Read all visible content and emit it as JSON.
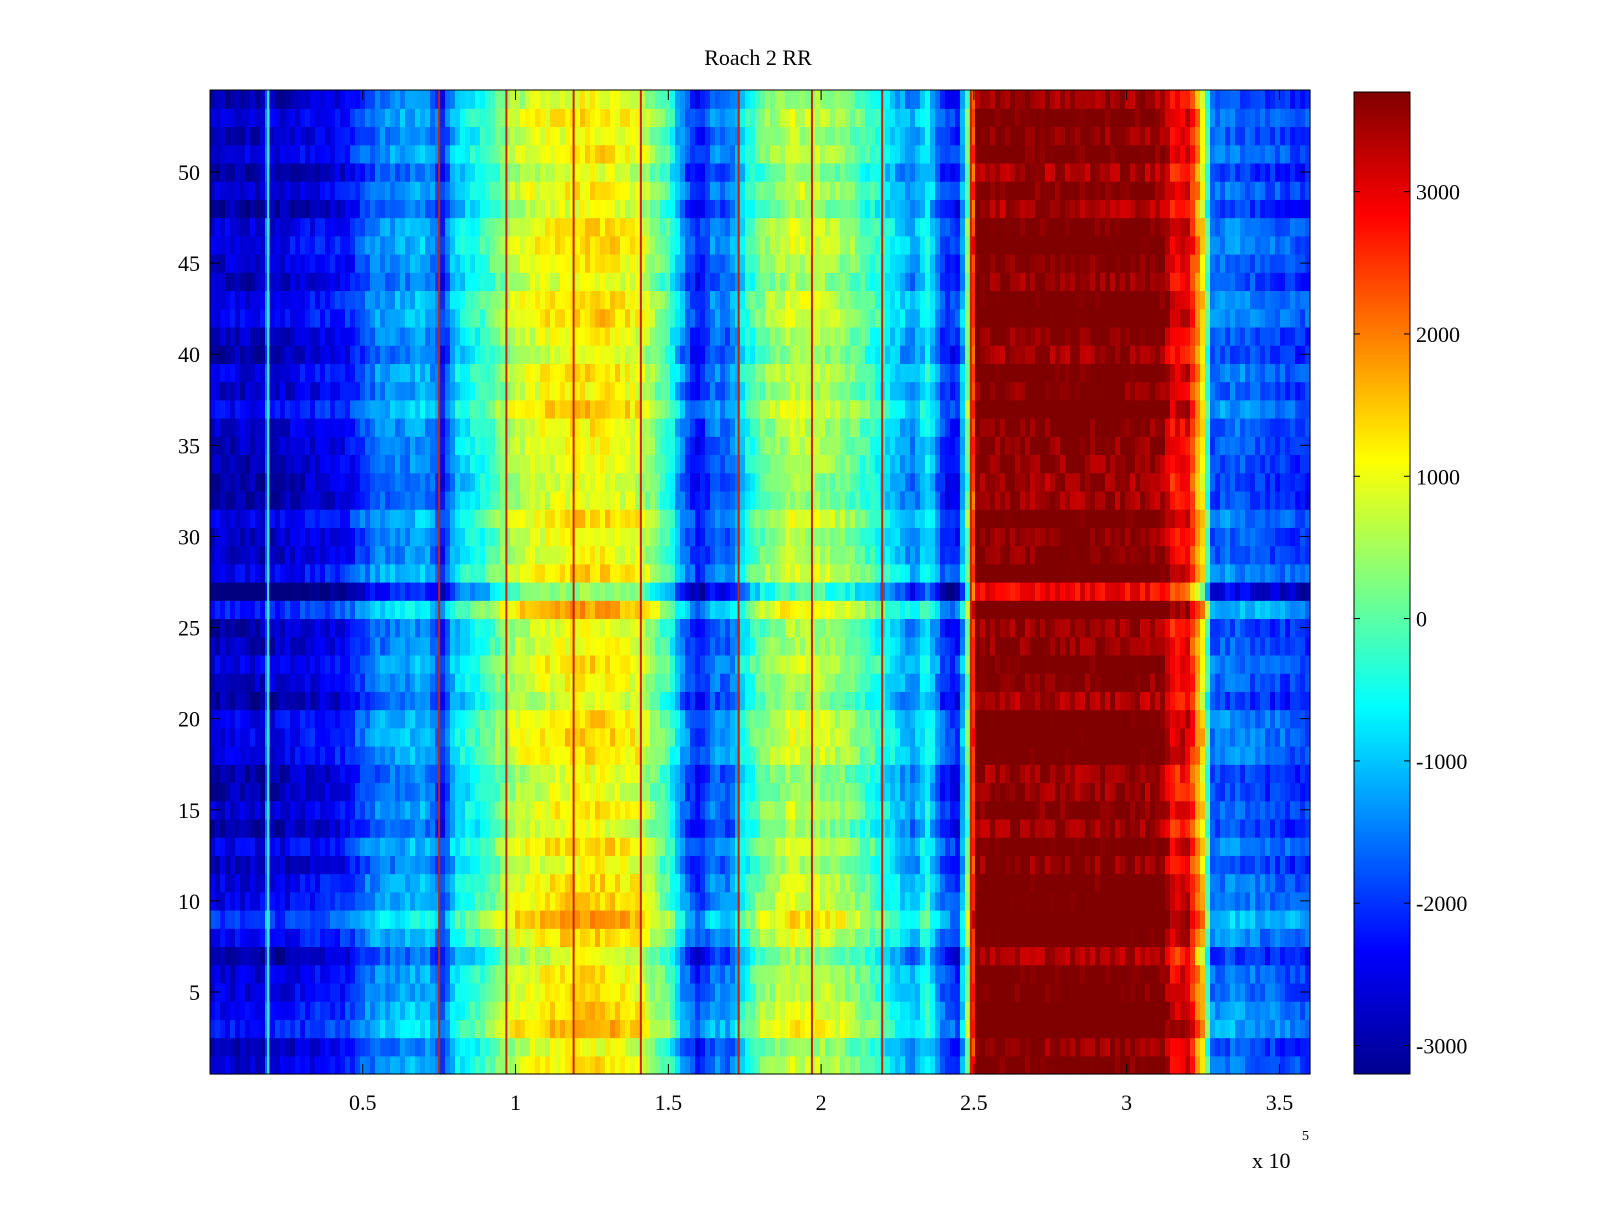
{
  "chart_data": {
    "type": "heatmap",
    "title": "Roach 2 RR",
    "xlabel": "",
    "ylabel": "",
    "x_multiplier_label": "x 10",
    "x_multiplier_exponent": "5",
    "xlim": [
      0.0,
      3.6
    ],
    "ylim": [
      0.5,
      54.5
    ],
    "xticks": [
      0.5,
      1,
      1.5,
      2,
      2.5,
      3,
      3.5
    ],
    "xtick_labels": [
      "0.5",
      "1",
      "1.5",
      "2",
      "2.5",
      "3",
      "3.5"
    ],
    "yticks": [
      5,
      10,
      15,
      20,
      25,
      30,
      35,
      40,
      45,
      50
    ],
    "ytick_labels": [
      "5",
      "10",
      "15",
      "20",
      "25",
      "30",
      "35",
      "40",
      "45",
      "50"
    ],
    "colormap": "jet",
    "clim": [
      -3200,
      3700
    ],
    "colorbar_ticks": [
      3000,
      2000,
      1000,
      0,
      -1000,
      -2000,
      -3000
    ],
    "colorbar_tick_labels": [
      "3000",
      "2000",
      "1000",
      "0",
      "-1000",
      "-2000",
      "-3000"
    ],
    "rows": 54,
    "columns_profile_x": [
      0.0,
      0.18,
      0.19,
      0.2,
      0.45,
      0.5,
      0.55,
      0.7,
      0.74,
      0.76,
      0.8,
      0.9,
      1.0,
      1.1,
      1.2,
      1.3,
      1.4,
      1.5,
      1.55,
      1.6,
      1.65,
      1.7,
      1.75,
      1.8,
      1.9,
      2.0,
      2.1,
      2.2,
      2.3,
      2.35,
      2.4,
      2.45,
      2.49,
      2.5,
      2.7,
      3.0,
      3.12,
      3.15,
      3.2,
      3.25,
      3.28,
      3.35,
      3.45,
      3.6
    ],
    "columns_profile_value": [
      -2700,
      -2700,
      -1400,
      -2700,
      -2300,
      -1800,
      -1500,
      -1200,
      -1600,
      -2200,
      -900,
      -300,
      700,
      1000,
      1200,
      1200,
      900,
      -200,
      -1500,
      -2300,
      -1500,
      -1700,
      -600,
      100,
      700,
      600,
      200,
      -500,
      -1400,
      -600,
      -2000,
      -2200,
      1000,
      3700,
      3700,
      3700,
      3600,
      2800,
      3000,
      1200,
      -1700,
      -1600,
      -1800,
      -2000
    ],
    "notable_rows": [
      {
        "row": 3,
        "note": "lighter band"
      },
      {
        "row": 7,
        "note": "dark / red band"
      },
      {
        "row": 9,
        "note": "lighter band"
      },
      {
        "row": 26,
        "note": "lighter band with red right"
      },
      {
        "row": 27,
        "note": "dark band"
      },
      {
        "row": 40,
        "note": "red band right"
      }
    ],
    "thin_lines_x": [
      0.19,
      0.75,
      0.97,
      1.19,
      1.41,
      1.73,
      1.97,
      2.2,
      2.49
    ]
  }
}
